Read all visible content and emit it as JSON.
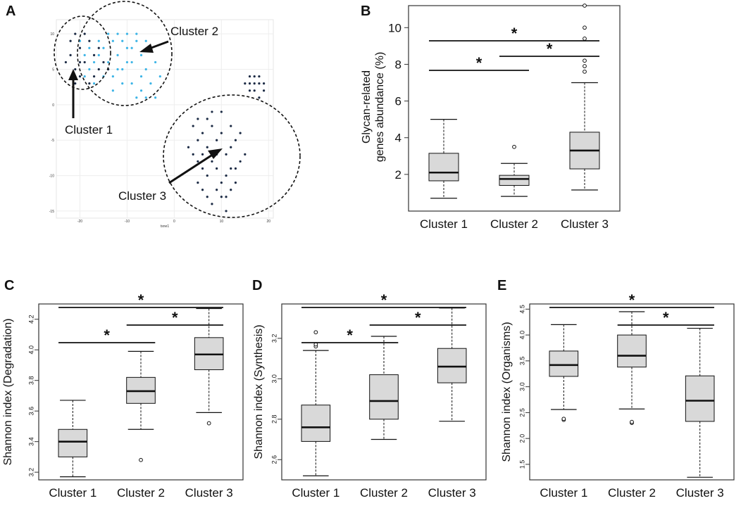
{
  "figure_panels": {
    "A": "A",
    "B": "B",
    "C": "C",
    "D": "D",
    "E": "E"
  },
  "colors": {
    "light_point": "#3cb4e6",
    "dark_point": "#1b2a44",
    "box_fill": "#d9d9d9",
    "line": "#111111"
  },
  "star_symbol": "*",
  "chart_data": [
    {
      "panel": "A",
      "type": "scatter",
      "title": "",
      "xlabel": "tsne1",
      "ylabel": "",
      "xlim": [
        -25,
        21
      ],
      "ylim": [
        -16,
        12
      ],
      "xticks": [
        "-20",
        "-10",
        "0",
        "10",
        "20"
      ],
      "yticks": [
        "10",
        "5",
        "0",
        "-5",
        "-10",
        "-15"
      ],
      "cluster_labels": [
        "Cluster 1",
        "Cluster 2",
        "Cluster 3"
      ],
      "series": [
        {
          "name": "light",
          "color": "#3cb4e6",
          "points": [
            [
              -19,
              7
            ],
            [
              -18,
              8
            ],
            [
              -17,
              6
            ],
            [
              -16,
              7
            ],
            [
              -15,
              8
            ],
            [
              -14,
              6
            ],
            [
              -13,
              9
            ],
            [
              -12,
              7
            ],
            [
              -11,
              5
            ],
            [
              -10,
              8
            ],
            [
              -9,
              6
            ],
            [
              -8,
              9
            ],
            [
              -7,
              7
            ],
            [
              -6,
              5
            ],
            [
              -5,
              8
            ],
            [
              -4,
              6
            ],
            [
              -12,
              10
            ],
            [
              -10,
              10
            ],
            [
              -8,
              10
            ],
            [
              -11,
              3
            ],
            [
              -9,
              3
            ],
            [
              -7,
              2
            ],
            [
              -5,
              3
            ],
            [
              -3,
              4
            ],
            [
              -6,
              1
            ],
            [
              -4,
              1
            ],
            [
              -8,
              1
            ],
            [
              -15,
              4
            ],
            [
              -13,
              4
            ],
            [
              -17,
              3
            ],
            [
              -19,
              4
            ],
            [
              -20,
              9
            ],
            [
              -14,
              10
            ],
            [
              -6,
              9
            ],
            [
              -10,
              6
            ],
            [
              -12,
              5
            ],
            [
              -7,
              4
            ],
            [
              -9,
              8
            ],
            [
              -11,
              9
            ],
            [
              -16,
              9
            ],
            [
              -18,
              5
            ],
            [
              -13,
              2
            ]
          ]
        },
        {
          "name": "dark",
          "color": "#1b2a44",
          "points": [
            [
              -21,
              10
            ],
            [
              -20,
              8
            ],
            [
              -22,
              7
            ],
            [
              -21,
              5
            ],
            [
              -19,
              6
            ],
            [
              -18,
              9
            ],
            [
              -17,
              7
            ],
            [
              -20,
              4
            ],
            [
              -18,
              3
            ],
            [
              -16,
              5
            ],
            [
              -15,
              6
            ],
            [
              -22,
              9
            ],
            [
              -19,
              10
            ],
            [
              -17,
              4
            ],
            [
              -21,
              3
            ],
            [
              -23,
              6
            ],
            [
              -16,
              8
            ],
            [
              -20,
              6
            ],
            [
              -14,
              5
            ],
            [
              4,
              -3
            ],
            [
              5,
              -5
            ],
            [
              6,
              -4
            ],
            [
              7,
              -6
            ],
            [
              8,
              -3
            ],
            [
              9,
              -5
            ],
            [
              10,
              -4
            ],
            [
              11,
              -7
            ],
            [
              12,
              -6
            ],
            [
              5,
              -8
            ],
            [
              6,
              -9
            ],
            [
              7,
              -10
            ],
            [
              8,
              -8
            ],
            [
              9,
              -9
            ],
            [
              10,
              -11
            ],
            [
              11,
              -10
            ],
            [
              12,
              -12
            ],
            [
              6,
              -12
            ],
            [
              7,
              -13
            ],
            [
              8,
              -14
            ],
            [
              9,
              -12
            ],
            [
              10,
              -13
            ],
            [
              11,
              -15
            ],
            [
              5,
              -11
            ],
            [
              13,
              -9
            ],
            [
              14,
              -8
            ],
            [
              4,
              -7
            ],
            [
              3,
              -6
            ],
            [
              8,
              -1
            ],
            [
              10,
              -1
            ],
            [
              12,
              -3
            ],
            [
              13,
              -5
            ],
            [
              14,
              -4
            ],
            [
              9,
              -7
            ],
            [
              7,
              -2
            ],
            [
              6,
              -7
            ],
            [
              11,
              -13
            ],
            [
              13,
              -11
            ],
            [
              15,
              -7
            ],
            [
              12,
              -9
            ],
            [
              5,
              -2
            ],
            [
              16,
              4
            ],
            [
              17,
              3
            ],
            [
              18,
              4
            ],
            [
              19,
              3
            ],
            [
              17,
              2
            ],
            [
              16,
              2
            ],
            [
              18,
              1
            ],
            [
              19,
              2
            ],
            [
              15,
              3
            ],
            [
              16,
              3
            ],
            [
              17,
              4
            ],
            [
              18,
              3
            ]
          ]
        }
      ]
    },
    {
      "panel": "B",
      "type": "box",
      "ylabel": [
        "Glycan-related",
        "genes abundance (%)"
      ],
      "ylim": [
        0,
        11.2
      ],
      "yticks": [
        2,
        4,
        6,
        8,
        10
      ],
      "categories": [
        "Cluster 1",
        "Cluster 2",
        "Cluster 3"
      ],
      "boxes": [
        {
          "name": "Cluster 1",
          "min": 0.7,
          "q1": 1.65,
          "median": 2.1,
          "q3": 3.15,
          "max": 5.0,
          "outliers": []
        },
        {
          "name": "Cluster 2",
          "min": 0.8,
          "q1": 1.4,
          "median": 1.75,
          "q3": 1.95,
          "max": 2.6,
          "outliers": [
            3.5
          ]
        },
        {
          "name": "Cluster 3",
          "min": 1.15,
          "q1": 2.3,
          "median": 3.3,
          "q3": 4.3,
          "max": 7.0,
          "outliers": [
            7.6,
            7.9,
            8.2,
            9.4,
            10.0,
            11.2
          ]
        }
      ],
      "significance": [
        {
          "from": 0,
          "to": 1,
          "level": 0,
          "label": "*"
        },
        {
          "from": 1,
          "to": 2,
          "level": 1,
          "label": "*"
        },
        {
          "from": 0,
          "to": 2,
          "level": 2,
          "label": "*"
        }
      ]
    },
    {
      "panel": "C",
      "type": "box",
      "ylabel": [
        "Shannon index (Degradation)"
      ],
      "ylim": [
        3.15,
        4.3
      ],
      "yticks": [
        "3.2",
        "3.4",
        "3.6",
        "3.8",
        "4.0",
        "4.2"
      ],
      "ytick_values": [
        3.2,
        3.4,
        3.6,
        3.8,
        4.0,
        4.2
      ],
      "categories": [
        "Cluster 1",
        "Cluster 2",
        "Cluster 3"
      ],
      "boxes": [
        {
          "name": "Cluster 1",
          "min": 3.17,
          "q1": 3.3,
          "median": 3.4,
          "q3": 3.48,
          "max": 3.67,
          "outliers": []
        },
        {
          "name": "Cluster 2",
          "min": 3.48,
          "q1": 3.65,
          "median": 3.73,
          "q3": 3.82,
          "max": 3.99,
          "outliers": [
            3.28
          ]
        },
        {
          "name": "Cluster 3",
          "min": 3.59,
          "q1": 3.87,
          "median": 3.97,
          "q3": 4.08,
          "max": 4.27,
          "outliers": [
            3.52
          ]
        }
      ],
      "significance": [
        {
          "from": 0,
          "to": 1,
          "level": 0,
          "label": "*"
        },
        {
          "from": 1,
          "to": 2,
          "level": 1,
          "label": "*"
        },
        {
          "from": 0,
          "to": 2,
          "level": 2,
          "label": "*"
        }
      ]
    },
    {
      "panel": "D",
      "type": "box",
      "ylabel": [
        "Shannon index (Synthesis)"
      ],
      "ylim": [
        2.5,
        3.37
      ],
      "yticks": [
        "2.6",
        "2.8",
        "3.0",
        "3.2"
      ],
      "ytick_values": [
        2.6,
        2.8,
        3.0,
        3.2
      ],
      "categories": [
        "Cluster 1",
        "Cluster 2",
        "Cluster 3"
      ],
      "boxes": [
        {
          "name": "Cluster 1",
          "min": 2.52,
          "q1": 2.69,
          "median": 2.76,
          "q3": 2.87,
          "max": 3.14,
          "outliers": [
            3.16,
            3.17,
            3.23
          ]
        },
        {
          "name": "Cluster 2",
          "min": 2.7,
          "q1": 2.8,
          "median": 2.89,
          "q3": 3.02,
          "max": 3.21,
          "outliers": []
        },
        {
          "name": "Cluster 3",
          "min": 2.79,
          "q1": 2.98,
          "median": 3.06,
          "q3": 3.15,
          "max": 3.35,
          "outliers": []
        }
      ],
      "significance": [
        {
          "from": 0,
          "to": 1,
          "level": 0,
          "label": "*"
        },
        {
          "from": 1,
          "to": 2,
          "level": 1,
          "label": "*"
        },
        {
          "from": 0,
          "to": 2,
          "level": 2,
          "label": "*"
        }
      ]
    },
    {
      "panel": "E",
      "type": "box",
      "ylabel": [
        "Shannon index (Organisms)"
      ],
      "ylim": [
        1.2,
        4.6
      ],
      "yticks": [
        "1.5",
        "2.0",
        "2.5",
        "3.0",
        "3.5",
        "4.0",
        "4.5"
      ],
      "ytick_values": [
        1.5,
        2.0,
        2.5,
        3.0,
        3.5,
        4.0,
        4.5
      ],
      "categories": [
        "Cluster 1",
        "Cluster 2",
        "Cluster 3"
      ],
      "boxes": [
        {
          "name": "Cluster 1",
          "min": 2.56,
          "q1": 3.2,
          "median": 3.42,
          "q3": 3.69,
          "max": 4.2,
          "outliers": [
            2.36,
            2.38
          ]
        },
        {
          "name": "Cluster 2",
          "min": 2.57,
          "q1": 3.38,
          "median": 3.6,
          "q3": 4.0,
          "max": 4.45,
          "outliers": [
            2.3,
            2.32
          ]
        },
        {
          "name": "Cluster 3",
          "min": 1.25,
          "q1": 2.33,
          "median": 2.73,
          "q3": 3.21,
          "max": 4.13,
          "outliers": []
        }
      ],
      "significance": [
        {
          "from": 1,
          "to": 2,
          "level": 1,
          "label": "*"
        },
        {
          "from": 0,
          "to": 2,
          "level": 2,
          "label": "*"
        }
      ]
    }
  ]
}
